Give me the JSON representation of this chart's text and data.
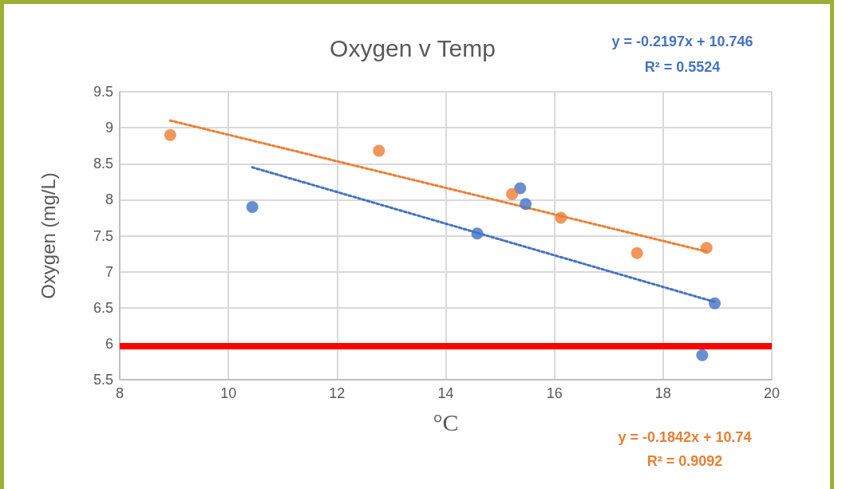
{
  "chart_data": {
    "type": "scatter",
    "title": "Oxygen v Temp",
    "xlabel": "°C",
    "ylabel": "Oxygen (mg/L)",
    "xlim": [
      8,
      20
    ],
    "xticks": [
      8,
      10,
      12,
      14,
      16,
      18,
      20
    ],
    "ylim": [
      5.5,
      9.5
    ],
    "yticks": [
      5.5,
      6,
      6.5,
      7,
      7.5,
      8,
      8.5,
      9,
      9.5
    ],
    "grid": true,
    "marker": "circle",
    "series": [
      {
        "color": "#4472c4",
        "x": [
          10.44,
          14.58,
          15.37,
          15.47,
          18.95,
          18.72
        ],
        "values": [
          7.9,
          7.53,
          8.16,
          7.94,
          6.56,
          5.84
        ]
      },
      {
        "color": "#ed7d31",
        "x": [
          8.93,
          12.77,
          15.22,
          16.12,
          17.52,
          18.8
        ],
        "values": [
          8.9,
          8.68,
          8.08,
          7.75,
          7.26,
          7.33
        ]
      },
      {
        "type": "line",
        "color": "#4472c4",
        "line_style": "dotted",
        "marker": "none",
        "x": [
          10.44,
          18.95
        ],
        "values": [
          8.45,
          6.58
        ]
      },
      {
        "type": "line",
        "color": "#ed7d31",
        "line_style": "dotted",
        "marker": "none",
        "x": [
          8.93,
          18.8
        ],
        "values": [
          9.1,
          7.28
        ]
      }
    ],
    "ref_lines": [
      {
        "axis": "y",
        "value": 5.97,
        "color": "#ff0000",
        "line_style": "solid"
      }
    ],
    "annotations": [
      "y = -0.2197x + 10.746",
      "R² = 0.5524",
      "y = -0.1842x + 10.74",
      "R² = 0.9092"
    ]
  }
}
